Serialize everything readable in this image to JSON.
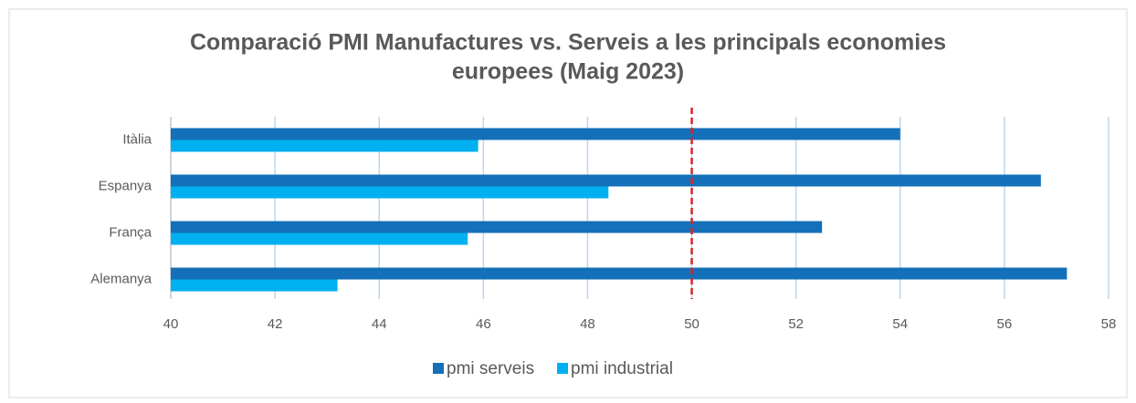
{
  "chart_data": {
    "type": "hbar",
    "title": [
      "Comparació PMI Manufactures vs. Serveis a les principals economies",
      "europees (Maig 2023)"
    ],
    "categories": [
      "Itàlia",
      "Espanya",
      "França",
      "Alemanya"
    ],
    "series": [
      {
        "name": "pmi serveis",
        "color": "#1470b8",
        "values": [
          54.0,
          56.7,
          52.5,
          57.2
        ]
      },
      {
        "name": "pmi industrial",
        "color": "#00b0f0",
        "values": [
          45.9,
          48.4,
          45.7,
          43.2
        ]
      }
    ],
    "xlim": [
      40,
      58
    ],
    "xticks": [
      40,
      42,
      44,
      46,
      48,
      50,
      52,
      54,
      56,
      58
    ],
    "grid": true,
    "legend": "bottom",
    "reference_line": {
      "value": 50,
      "color": "#d62728"
    }
  }
}
